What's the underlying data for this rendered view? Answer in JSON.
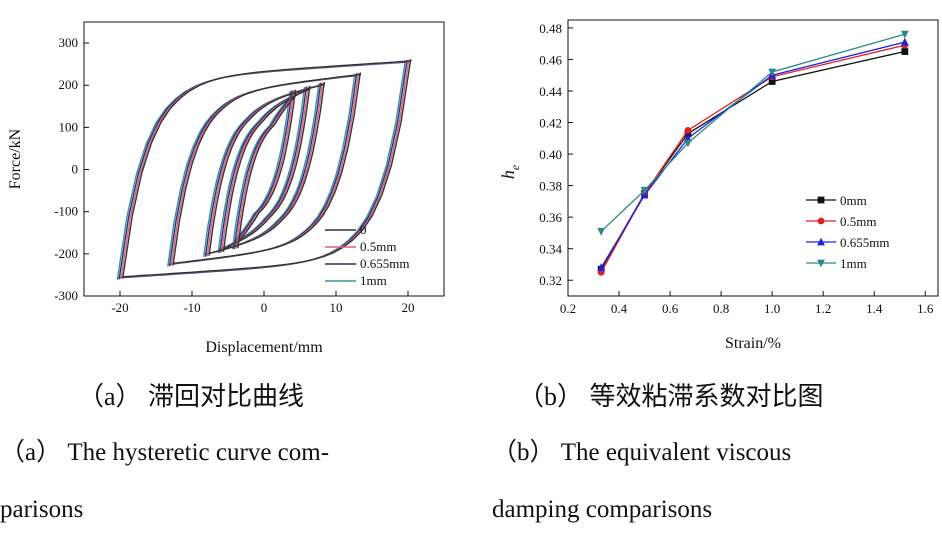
{
  "chart_data": [
    {
      "type": "line",
      "xlabel": "Displacement/mm",
      "ylabel": "Force/kN",
      "xlim": [
        -25,
        25
      ],
      "ylim": [
        -300,
        350
      ],
      "xticks": [
        "-20",
        "-10",
        "0",
        "10",
        "20"
      ],
      "xtick_values": [
        -20,
        -10,
        0,
        10,
        20
      ],
      "yticks": [
        "-300",
        "-200",
        "-100",
        "0",
        "100",
        "200",
        "300"
      ],
      "ytick_values": [
        -300,
        -200,
        -100,
        0,
        100,
        200,
        300
      ],
      "legend_position": "bottom-right",
      "amplitudes": [
        4,
        6,
        8,
        13,
        20
      ],
      "series": [
        {
          "name": "0",
          "color": "#333333"
        },
        {
          "name": "0.5mm",
          "color": "#d9607a"
        },
        {
          "name": "0.655mm",
          "color": "#2a2f7a"
        },
        {
          "name": "1mm",
          "color": "#3f8fa6"
        }
      ]
    },
    {
      "type": "line",
      "xlabel": "Strain/%",
      "ylabel": "h_e",
      "xlim": [
        0.2,
        1.65
      ],
      "ylim": [
        0.31,
        0.485
      ],
      "xticks": [
        "0.2",
        "0.4",
        "0.6",
        "0.8",
        "1.0",
        "1.2",
        "1.4",
        "1.6"
      ],
      "xtick_values": [
        0.2,
        0.4,
        0.6,
        0.8,
        1.0,
        1.2,
        1.4,
        1.6
      ],
      "yticks": [
        "0.32",
        "0.34",
        "0.36",
        "0.38",
        "0.40",
        "0.42",
        "0.44",
        "0.46",
        "0.48"
      ],
      "ytick_values": [
        0.32,
        0.34,
        0.36,
        0.38,
        0.4,
        0.42,
        0.44,
        0.46,
        0.48
      ],
      "legend_position": "bottom-right",
      "x": [
        0.33,
        0.5,
        0.67,
        1.0,
        1.52
      ],
      "series": [
        {
          "name": "0mm",
          "color": "#111111",
          "marker": "square",
          "values": [
            0.327,
            0.375,
            0.413,
            0.446,
            0.465
          ]
        },
        {
          "name": "0.5mm",
          "color": "#e02020",
          "marker": "circle",
          "values": [
            0.325,
            0.375,
            0.415,
            0.449,
            0.469
          ]
        },
        {
          "name": "0.655mm",
          "color": "#2020e0",
          "marker": "triangle",
          "values": [
            0.328,
            0.374,
            0.41,
            0.45,
            0.471
          ]
        },
        {
          "name": "1mm",
          "color": "#2a8a8a",
          "marker": "triangle-down",
          "values": [
            0.351,
            0.377,
            0.407,
            0.452,
            0.476
          ]
        }
      ]
    }
  ],
  "captions": {
    "a_cn": "（a）  滞回对比曲线",
    "b_cn": "（b）  等效粘滞系数对比图",
    "a_en_1": "（a）   The hysteretic curve com-",
    "a_en_2": "parisons",
    "b_en_1": "（b）    The    equivalent    viscous",
    "b_en_2": "damping comparisons"
  }
}
